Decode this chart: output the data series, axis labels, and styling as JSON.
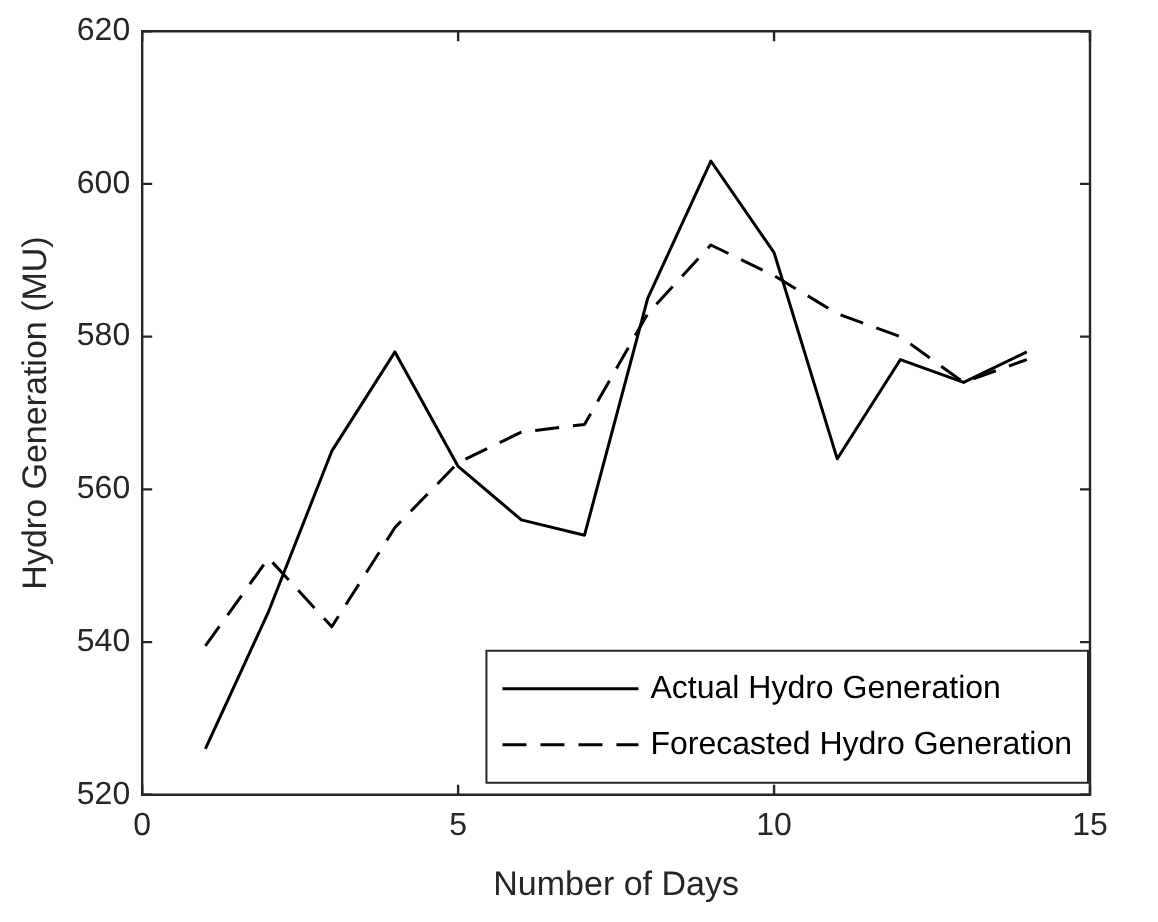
{
  "chart_data": {
    "type": "line",
    "xlabel": "Number of Days",
    "ylabel": "Hydro Generation (MU)",
    "x": [
      1,
      2,
      3,
      4,
      5,
      6,
      7,
      8,
      9,
      10,
      11,
      12,
      13,
      14
    ],
    "series": [
      {
        "name": "Actual Hydro Generation",
        "color": "#000000",
        "line_style": "solid",
        "values": [
          526,
          544,
          565,
          578,
          563,
          556,
          554,
          585,
          603,
          591,
          564,
          577,
          574,
          578
        ]
      },
      {
        "name": "Forecasted Hydro Generation",
        "color": "#000000",
        "line_style": "dashed",
        "values": [
          539.5,
          551,
          542,
          555,
          563.5,
          567.5,
          568.5,
          583,
          592,
          588,
          583,
          580,
          574,
          577
        ]
      }
    ],
    "xlim": [
      0,
      15
    ],
    "xticks": [
      0,
      5,
      10,
      15
    ],
    "ylim": [
      520,
      620
    ],
    "yticks": [
      520,
      540,
      560,
      580,
      600,
      620
    ],
    "grid": false,
    "legend": "bottom right",
    "marker": "none"
  }
}
